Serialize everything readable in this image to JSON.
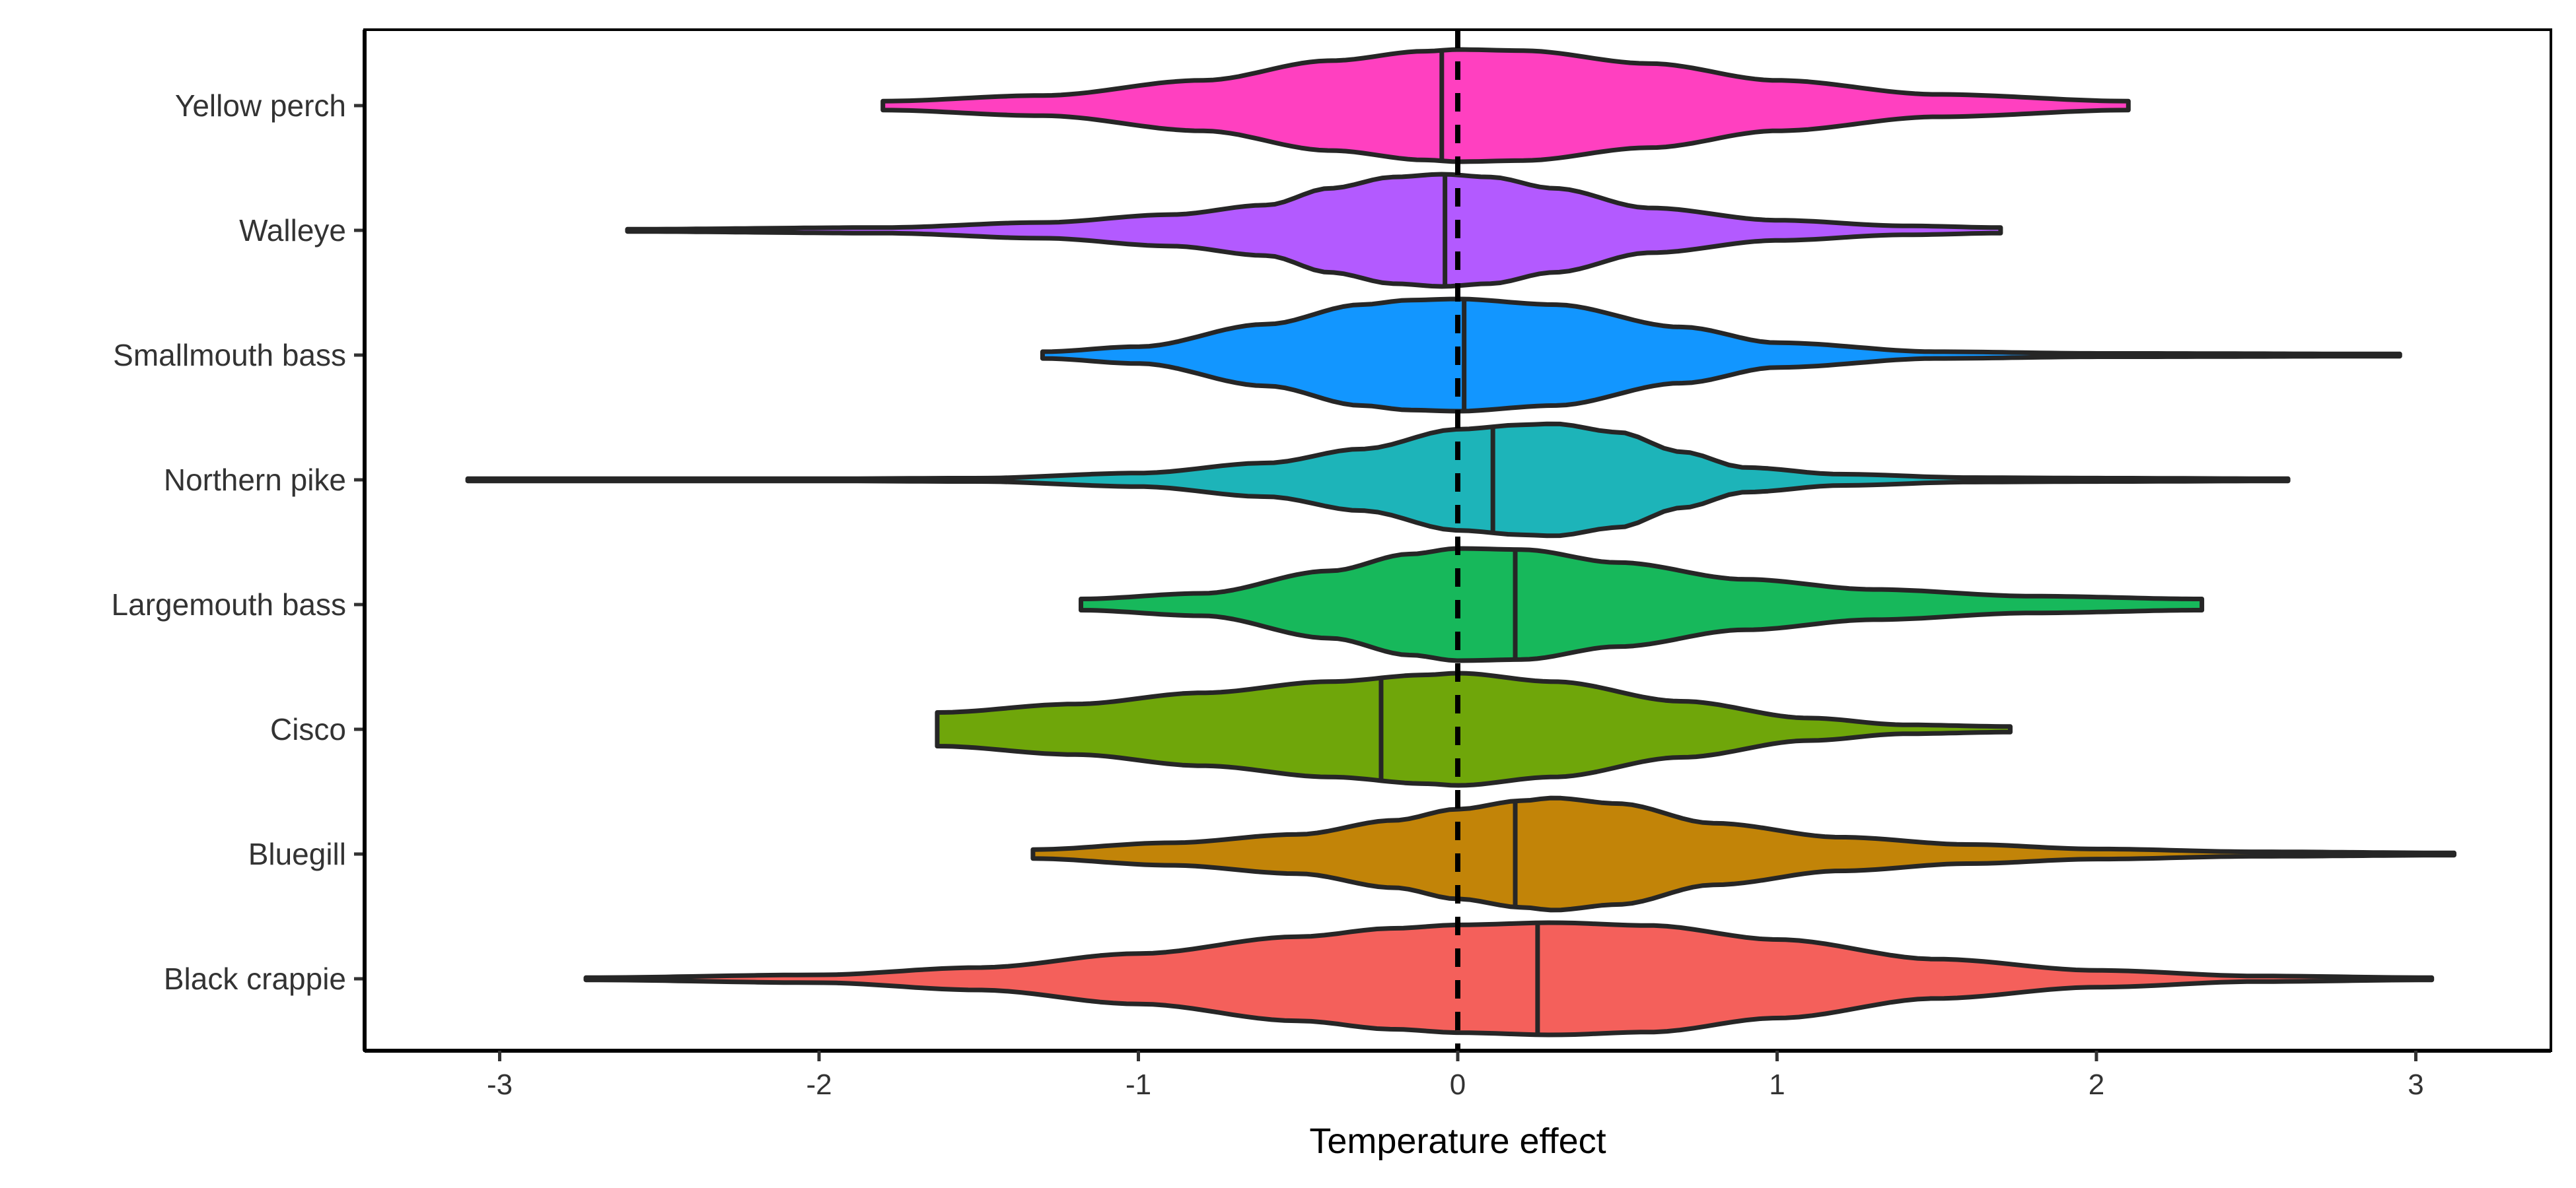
{
  "chart_data": {
    "type": "violin",
    "orientation": "horizontal",
    "title": "",
    "xlabel": "Temperature effect",
    "ylabel": "",
    "xlim": [
      -3.4,
      3.4
    ],
    "xticks": [
      -3,
      -2,
      -1,
      0,
      1,
      2,
      3
    ],
    "reference_line": {
      "x": 0,
      "style": "dashed"
    },
    "legend": "none",
    "grid": false,
    "categories": [
      "Yellow perch",
      "Walleye",
      "Smallmouth bass",
      "Northern pike",
      "Largemouth bass",
      "Cisco",
      "Bluegill",
      "Black crappie"
    ],
    "series": [
      {
        "category": "Yellow perch",
        "color": "#FF40C0",
        "median": -0.05,
        "min": -1.8,
        "max": 2.1,
        "profile": [
          [
            -1.8,
            0.08
          ],
          [
            -1.3,
            0.18
          ],
          [
            -0.8,
            0.45
          ],
          [
            -0.4,
            0.8
          ],
          [
            -0.1,
            0.97
          ],
          [
            0.0,
            1.0
          ],
          [
            0.2,
            0.98
          ],
          [
            0.6,
            0.75
          ],
          [
            1.0,
            0.45
          ],
          [
            1.5,
            0.2
          ],
          [
            2.1,
            0.08
          ]
        ]
      },
      {
        "category": "Walleye",
        "color": "#B35AFF",
        "median": -0.04,
        "min": -2.6,
        "max": 1.7,
        "profile": [
          [
            -2.6,
            0.02
          ],
          [
            -1.8,
            0.05
          ],
          [
            -1.3,
            0.14
          ],
          [
            -0.9,
            0.28
          ],
          [
            -0.6,
            0.45
          ],
          [
            -0.4,
            0.75
          ],
          [
            -0.2,
            0.95
          ],
          [
            -0.05,
            1.0
          ],
          [
            0.1,
            0.95
          ],
          [
            0.3,
            0.75
          ],
          [
            0.6,
            0.4
          ],
          [
            1.0,
            0.18
          ],
          [
            1.4,
            0.08
          ],
          [
            1.7,
            0.05
          ]
        ]
      },
      {
        "category": "Smallmouth bass",
        "color": "#1296FF",
        "median": 0.02,
        "min": -1.3,
        "max": 2.95,
        "profile": [
          [
            -1.3,
            0.06
          ],
          [
            -1.0,
            0.15
          ],
          [
            -0.6,
            0.55
          ],
          [
            -0.3,
            0.9
          ],
          [
            -0.15,
            0.98
          ],
          [
            0.0,
            1.0
          ],
          [
            0.3,
            0.9
          ],
          [
            0.7,
            0.5
          ],
          [
            1.0,
            0.22
          ],
          [
            1.5,
            0.06
          ],
          [
            2.0,
            0.03
          ],
          [
            2.95,
            0.02
          ]
        ]
      },
      {
        "category": "Northern pike",
        "color": "#1DB4B9",
        "median": 0.11,
        "min": -3.1,
        "max": 2.6,
        "profile": [
          [
            -3.1,
            0.02
          ],
          [
            -2.0,
            0.02
          ],
          [
            -1.5,
            0.03
          ],
          [
            -1.0,
            0.12
          ],
          [
            -0.6,
            0.3
          ],
          [
            -0.3,
            0.55
          ],
          [
            0.0,
            0.9
          ],
          [
            0.2,
            0.98
          ],
          [
            0.3,
            1.0
          ],
          [
            0.5,
            0.85
          ],
          [
            0.7,
            0.5
          ],
          [
            0.9,
            0.22
          ],
          [
            1.2,
            0.1
          ],
          [
            1.6,
            0.04
          ],
          [
            2.0,
            0.03
          ],
          [
            2.6,
            0.02
          ]
        ]
      },
      {
        "category": "Largemouth bass",
        "color": "#17B85B",
        "median": 0.18,
        "min": -1.18,
        "max": 2.33,
        "profile": [
          [
            -1.18,
            0.1
          ],
          [
            -0.8,
            0.2
          ],
          [
            -0.4,
            0.6
          ],
          [
            -0.15,
            0.9
          ],
          [
            0.0,
            1.0
          ],
          [
            0.2,
            0.98
          ],
          [
            0.5,
            0.75
          ],
          [
            0.9,
            0.45
          ],
          [
            1.3,
            0.27
          ],
          [
            1.8,
            0.15
          ],
          [
            2.33,
            0.1
          ]
        ]
      },
      {
        "category": "Cisco",
        "color": "#6FA60A",
        "median": -0.24,
        "min": -1.63,
        "max": 1.73,
        "profile": [
          [
            -1.63,
            0.3
          ],
          [
            -1.2,
            0.45
          ],
          [
            -0.8,
            0.65
          ],
          [
            -0.4,
            0.85
          ],
          [
            -0.1,
            0.97
          ],
          [
            0.0,
            1.0
          ],
          [
            0.3,
            0.85
          ],
          [
            0.7,
            0.5
          ],
          [
            1.1,
            0.2
          ],
          [
            1.4,
            0.08
          ],
          [
            1.73,
            0.05
          ]
        ]
      },
      {
        "category": "Bluegill",
        "color": "#C28408",
        "median": 0.18,
        "min": -1.33,
        "max": 3.12,
        "profile": [
          [
            -1.33,
            0.08
          ],
          [
            -0.9,
            0.2
          ],
          [
            -0.5,
            0.35
          ],
          [
            -0.2,
            0.6
          ],
          [
            0.0,
            0.8
          ],
          [
            0.2,
            0.95
          ],
          [
            0.3,
            1.0
          ],
          [
            0.5,
            0.9
          ],
          [
            0.8,
            0.55
          ],
          [
            1.2,
            0.3
          ],
          [
            1.6,
            0.17
          ],
          [
            2.0,
            0.09
          ],
          [
            2.5,
            0.04
          ],
          [
            3.12,
            0.02
          ]
        ]
      },
      {
        "category": "Black crappie",
        "color": "#F4605B",
        "median": 0.25,
        "min": -2.73,
        "max": 3.05,
        "profile": [
          [
            -2.73,
            0.02
          ],
          [
            -2.0,
            0.07
          ],
          [
            -1.5,
            0.2
          ],
          [
            -1.0,
            0.45
          ],
          [
            -0.5,
            0.75
          ],
          [
            -0.2,
            0.9
          ],
          [
            0.0,
            0.96
          ],
          [
            0.3,
            1.0
          ],
          [
            0.6,
            0.95
          ],
          [
            1.0,
            0.7
          ],
          [
            1.5,
            0.35
          ],
          [
            2.0,
            0.15
          ],
          [
            2.5,
            0.05
          ],
          [
            3.05,
            0.02
          ]
        ]
      }
    ]
  }
}
